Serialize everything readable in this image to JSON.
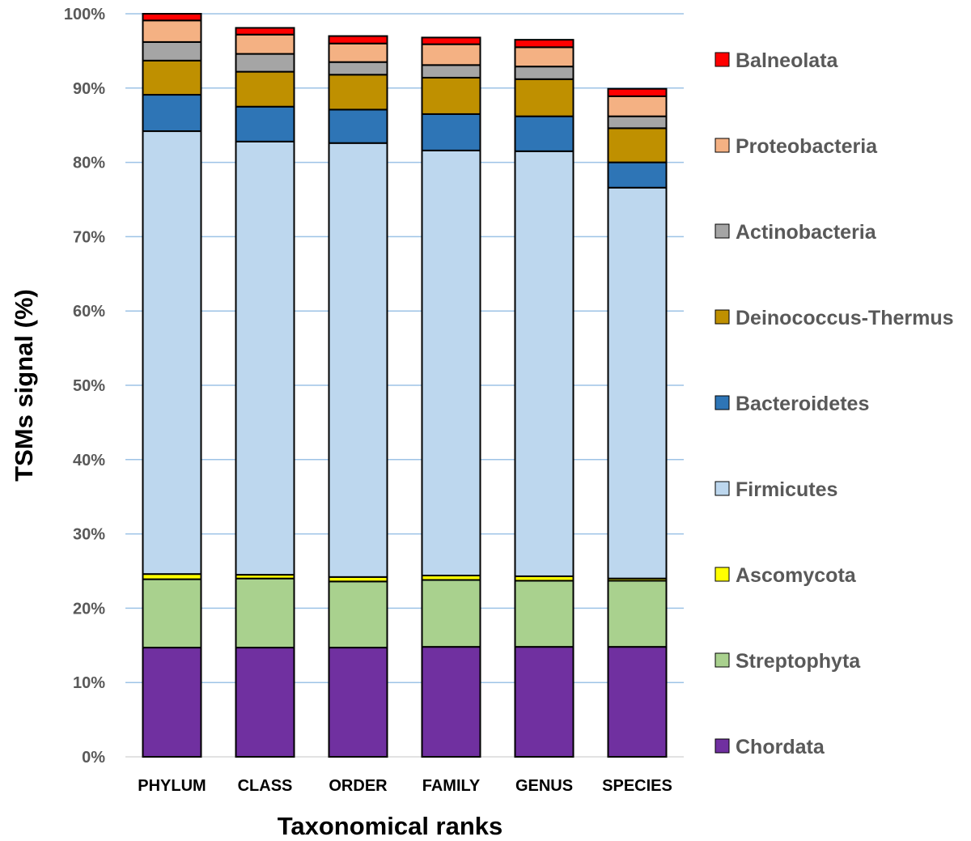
{
  "chart_data": {
    "type": "bar",
    "stacked": true,
    "title": "",
    "xlabel": "Taxonomical ranks",
    "ylabel": "TSMs signal (%)",
    "ylim": [
      0,
      100
    ],
    "yticks": [
      "0%",
      "10%",
      "20%",
      "30%",
      "40%",
      "50%",
      "60%",
      "70%",
      "80%",
      "90%",
      "100%"
    ],
    "grid": true,
    "legend_position": "right",
    "categories": [
      "PHYLUM",
      "CLASS",
      "ORDER",
      "FAMILY",
      "GENUS",
      "SPECIES"
    ],
    "series": [
      {
        "name": "Chordata",
        "color": "#7030A0",
        "values": [
          14.7,
          14.7,
          14.7,
          14.8,
          14.8,
          14.8
        ]
      },
      {
        "name": "Streptophyta",
        "color": "#A9D18E",
        "values": [
          9.2,
          9.3,
          8.9,
          9.0,
          8.9,
          8.9
        ]
      },
      {
        "name": "Ascomycota",
        "color": "#FFFF00",
        "values": [
          0.7,
          0.5,
          0.6,
          0.6,
          0.6,
          0.3
        ]
      },
      {
        "name": "Firmicutes",
        "color": "#BDD7EE",
        "values": [
          59.6,
          58.3,
          58.4,
          57.2,
          57.2,
          52.6
        ]
      },
      {
        "name": "Bacteroidetes",
        "color": "#2E75B6",
        "values": [
          4.9,
          4.7,
          4.5,
          4.9,
          4.7,
          3.4
        ]
      },
      {
        "name": "Deinococcus-Thermus",
        "color": "#BF9000",
        "values": [
          4.6,
          4.7,
          4.7,
          4.9,
          5.0,
          4.6
        ]
      },
      {
        "name": "Actinobacteria",
        "color": "#A5A5A5",
        "values": [
          2.5,
          2.4,
          1.7,
          1.7,
          1.7,
          1.6
        ]
      },
      {
        "name": "Proteobacteria",
        "color": "#F4B183",
        "values": [
          2.9,
          2.6,
          2.5,
          2.8,
          2.6,
          2.7
        ]
      },
      {
        "name": "Balneolata",
        "color": "#FF0000",
        "values": [
          0.9,
          0.9,
          1.0,
          0.9,
          1.0,
          1.0
        ]
      }
    ],
    "legend_order": [
      "Balneolata",
      "Proteobacteria",
      "Actinobacteria",
      "Deinococcus-Thermus",
      "Bacteroidetes",
      "Firmicutes",
      "Ascomycota",
      "Streptophyta",
      "Chordata"
    ],
    "gridline_color": "#9DC3E6"
  }
}
